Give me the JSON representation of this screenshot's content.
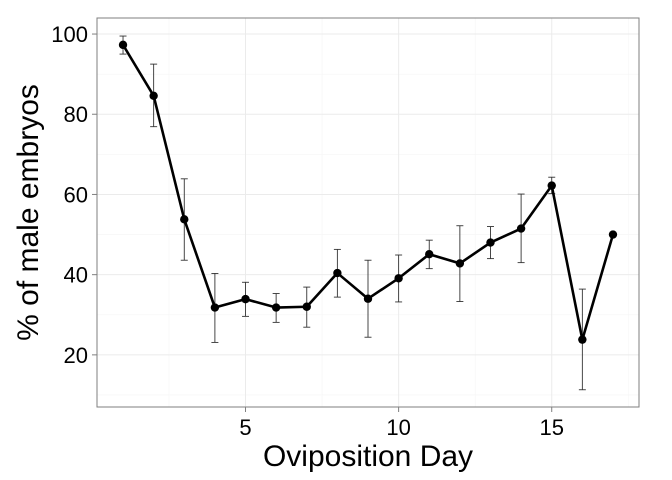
{
  "chart_data": {
    "type": "line",
    "title": "",
    "xlabel": "Oviposition Day",
    "ylabel": "% of male embryos",
    "xlim": [
      0.15,
      17.85
    ],
    "ylim": [
      7,
      104
    ],
    "x_ticks": [
      5,
      10,
      15
    ],
    "y_ticks": [
      20,
      40,
      60,
      80,
      100
    ],
    "x_tick_labels": [
      "5",
      "10",
      "15"
    ],
    "y_tick_labels": [
      "20",
      "40",
      "60",
      "80",
      "100"
    ],
    "grid": true,
    "legend": "none",
    "series": [
      {
        "x": [
          1,
          2,
          3,
          4,
          5,
          6,
          7,
          8,
          9,
          10,
          11,
          12,
          13,
          14,
          15,
          16,
          17
        ],
        "y": [
          97.3,
          84.6,
          53.8,
          31.8,
          33.9,
          31.8,
          32.0,
          40.4,
          34.0,
          39.1,
          45.1,
          42.8,
          48.0,
          51.5,
          62.2,
          23.8,
          50.0
        ],
        "error_low": [
          95.0,
          76.9,
          43.6,
          23.1,
          29.6,
          28.1,
          26.9,
          34.4,
          24.4,
          33.2,
          41.5,
          33.3,
          44.0,
          43.0,
          60.2,
          11.3,
          50.0
        ],
        "error_high": [
          99.5,
          92.5,
          63.9,
          40.3,
          38.1,
          35.3,
          36.9,
          46.3,
          43.6,
          44.9,
          48.6,
          52.2,
          52.0,
          60.1,
          64.3,
          36.4,
          50.0
        ]
      }
    ],
    "colors": {
      "line": "#000000",
      "error_bar": "#333333",
      "grid": "#ebebeb",
      "panel_border": "#7f7f7f"
    }
  }
}
